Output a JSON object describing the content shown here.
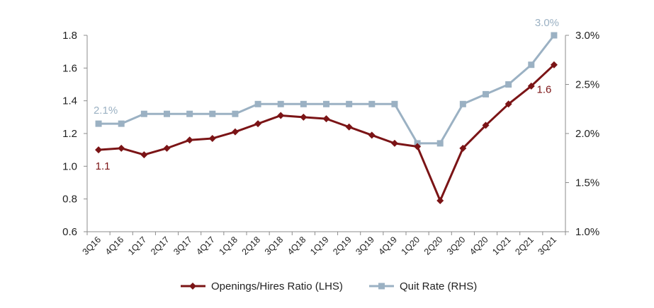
{
  "chart_data": {
    "type": "line",
    "categories": [
      "3Q16",
      "4Q16",
      "1Q17",
      "2Q17",
      "3Q17",
      "4Q17",
      "1Q18",
      "2Q18",
      "3Q18",
      "4Q18",
      "1Q19",
      "2Q19",
      "3Q19",
      "4Q19",
      "1Q20",
      "2Q20",
      "3Q20",
      "4Q20",
      "1Q21",
      "2Q21",
      "3Q21"
    ],
    "series": [
      {
        "name": "Openings/Hires Ratio (LHS)",
        "axis": "left",
        "color": "#7b1416",
        "marker": "diamond",
        "values": [
          1.1,
          1.11,
          1.07,
          1.11,
          1.16,
          1.17,
          1.21,
          1.26,
          1.31,
          1.3,
          1.29,
          1.24,
          1.19,
          1.14,
          1.12,
          0.79,
          1.11,
          1.25,
          1.38,
          1.49,
          1.62
        ]
      },
      {
        "name": "Quit Rate (RHS)",
        "axis": "right",
        "color": "#9bb1c3",
        "marker": "square",
        "values": [
          2.1,
          2.1,
          2.2,
          2.2,
          2.2,
          2.2,
          2.2,
          2.3,
          2.3,
          2.3,
          2.3,
          2.3,
          2.3,
          2.3,
          1.9,
          1.9,
          2.3,
          2.4,
          2.5,
          2.7,
          3.0
        ]
      }
    ],
    "left_axis": {
      "min": 0.6,
      "max": 1.8,
      "ticks": [
        "0.6",
        "0.8",
        "1.0",
        "1.2",
        "1.4",
        "1.6",
        "1.8"
      ]
    },
    "right_axis": {
      "min": 1.0,
      "max": 3.0,
      "ticks": [
        "1.0%",
        "1.5%",
        "2.0%",
        "2.5%",
        "3.0%"
      ]
    },
    "annotations": [
      {
        "text": "1.1",
        "series": 0,
        "index": 0,
        "position": "below"
      },
      {
        "text": "1.6",
        "series": 0,
        "index": 20,
        "position": "below-left"
      },
      {
        "text": "2.1%",
        "series": 1,
        "index": 0,
        "position": "above"
      },
      {
        "text": "3.0%",
        "series": 1,
        "index": 20,
        "position": "above-left"
      }
    ],
    "legend": {
      "placement": "bottom",
      "entries": [
        "Openings/Hires Ratio (LHS)",
        "Quit Rate (RHS)"
      ]
    },
    "grid": false
  }
}
